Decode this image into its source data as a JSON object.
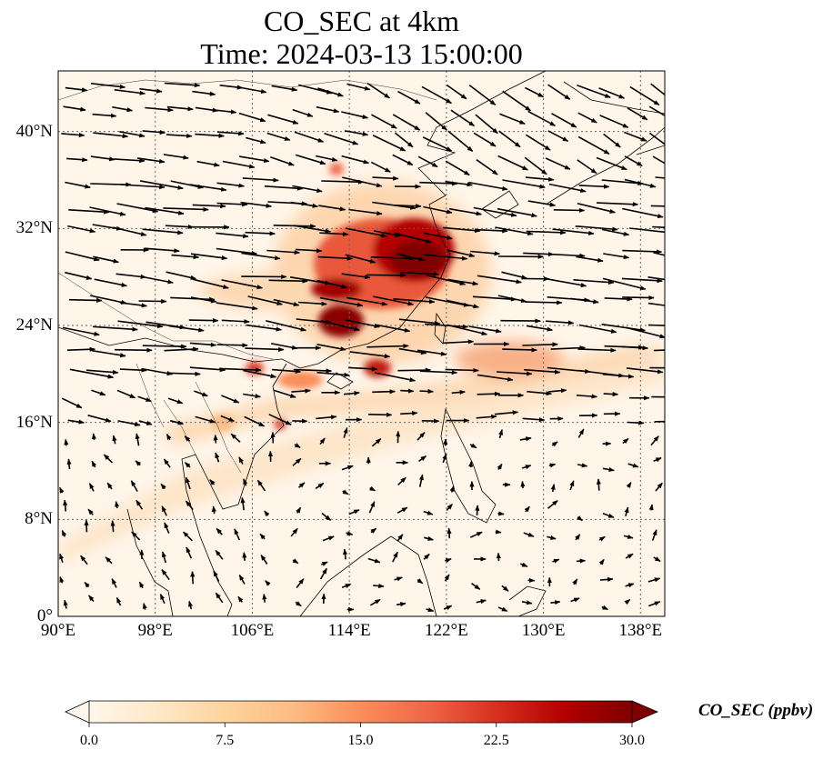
{
  "title": {
    "line1": "CO_SEC at 4km",
    "line2": "Time: 2024-03-13 15:00:00"
  },
  "map": {
    "lon_range": [
      90,
      140
    ],
    "lat_range": [
      0,
      45
    ],
    "gridlines": true,
    "lon_ticks": [
      "90°E",
      "98°E",
      "106°E",
      "114°E",
      "122°E",
      "130°E",
      "138°E"
    ],
    "lat_ticks": [
      "0°",
      "8°N",
      "16°N",
      "24°N",
      "32°N",
      "40°N"
    ],
    "field": "CO_SEC",
    "vectors": "wind arrows, predominantly westerly, stronger north of 16°N"
  },
  "colorbar": {
    "label": "CO_SEC (ppbv)",
    "ticks": [
      "0.0",
      "7.5",
      "15.0",
      "22.5",
      "30.0"
    ],
    "min": 0,
    "max": 30,
    "extend": "both",
    "colormap": "OrRd",
    "colors": [
      "#fff7ec",
      "#fee8c8",
      "#fdd49e",
      "#fdbb84",
      "#fc8d59",
      "#ef6548",
      "#d7301f",
      "#b30000",
      "#7f0000"
    ]
  }
}
